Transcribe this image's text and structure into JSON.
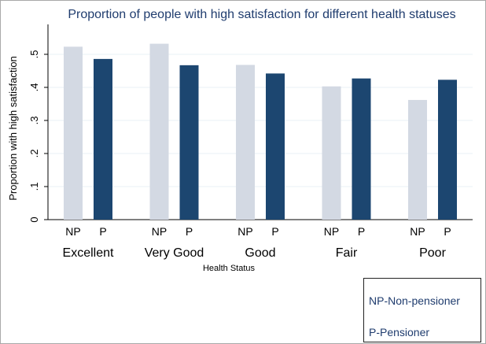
{
  "chart_data": {
    "type": "bar",
    "title": "Proportion of people with high satisfaction for different health statuses",
    "ylabel": "Proportion with high satisfaction",
    "xlabel": "Health Status",
    "ylim": [
      0,
      0.55
    ],
    "yticks": [
      {
        "value": 0,
        "label": "0"
      },
      {
        "value": 0.1,
        "label": ".1"
      },
      {
        "value": 0.2,
        "label": ".2"
      },
      {
        "value": 0.3,
        "label": ".3"
      },
      {
        "value": 0.4,
        "label": ".4"
      },
      {
        "value": 0.5,
        "label": ".5"
      }
    ],
    "grid": true,
    "categories": [
      "Excellent",
      "Very Good",
      "Good",
      "Fair",
      "Poor"
    ],
    "sublabels": [
      "NP",
      "P"
    ],
    "series": [
      {
        "key": "NP",
        "color": "#d3d9e3",
        "values": [
          0.523,
          0.532,
          0.468,
          0.403,
          0.362
        ]
      },
      {
        "key": "P",
        "color": "#1c4670",
        "values": [
          0.486,
          0.467,
          0.442,
          0.427,
          0.423
        ]
      }
    ],
    "legend": {
      "position": "bottom-right",
      "entries": [
        "NP-Non-pensioner",
        "P-Pensioner"
      ]
    }
  }
}
